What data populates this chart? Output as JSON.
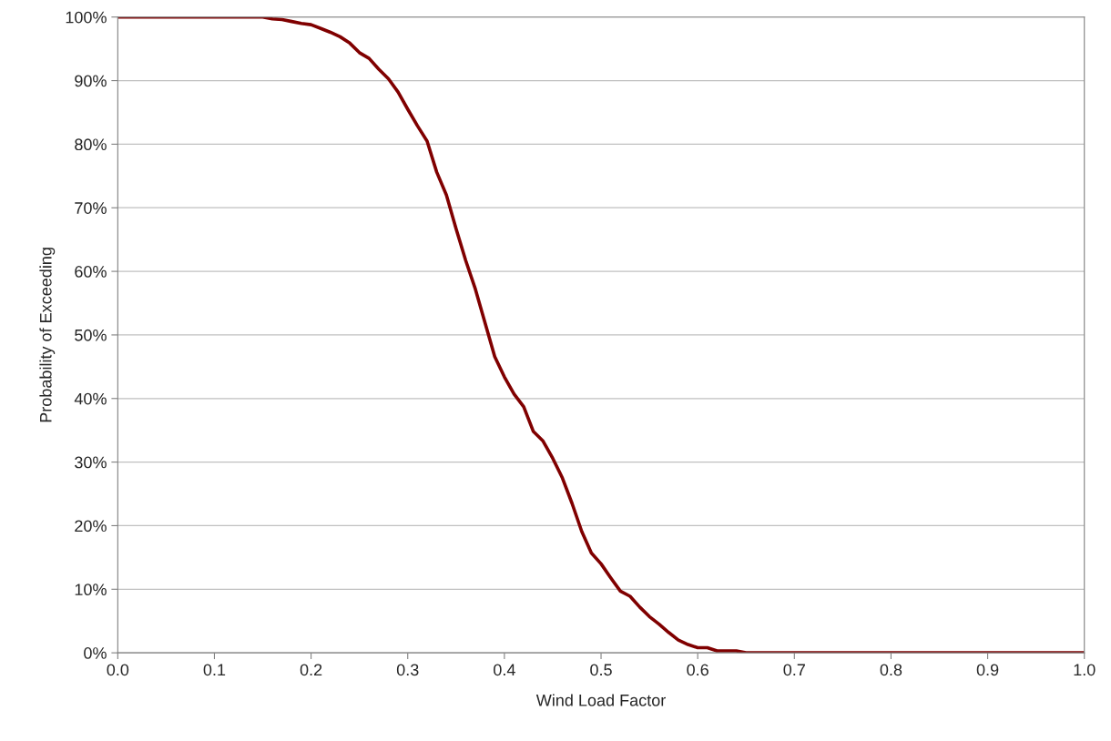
{
  "chart_data": {
    "type": "line",
    "xlabel": "Wind Load Factor",
    "ylabel": "Probability of Exceeding",
    "x": [
      0.0,
      0.05,
      0.1,
      0.15,
      0.16,
      0.17,
      0.18,
      0.19,
      0.2,
      0.21,
      0.22,
      0.23,
      0.24,
      0.25,
      0.26,
      0.27,
      0.28,
      0.29,
      0.3,
      0.31,
      0.32,
      0.33,
      0.34,
      0.35,
      0.36,
      0.37,
      0.38,
      0.39,
      0.4,
      0.41,
      0.42,
      0.43,
      0.44,
      0.45,
      0.46,
      0.47,
      0.48,
      0.49,
      0.5,
      0.51,
      0.52,
      0.53,
      0.54,
      0.55,
      0.56,
      0.57,
      0.58,
      0.59,
      0.6,
      0.61,
      0.62,
      0.63,
      0.64,
      0.65,
      0.7,
      0.8,
      0.9,
      1.0
    ],
    "series": [
      {
        "color": "#800000",
        "values": [
          100,
          100,
          100,
          100,
          99.7,
          99.6,
          99.3,
          99.0,
          98.8,
          98.2,
          97.6,
          96.9,
          95.9,
          94.4,
          93.5,
          91.8,
          90.3,
          88.2,
          85.5,
          82.9,
          80.5,
          75.6,
          72.0,
          66.7,
          61.7,
          57.2,
          51.9,
          46.6,
          43.4,
          40.7,
          38.7,
          34.8,
          33.3,
          30.6,
          27.5,
          23.5,
          19.1,
          15.7,
          14.0,
          11.8,
          9.7,
          8.9,
          7.2,
          5.7,
          4.5,
          3.2,
          2.0,
          1.3,
          0.8,
          0.8,
          0.3,
          0.3,
          0.3,
          0,
          0,
          0,
          0,
          0
        ]
      }
    ],
    "xlim": [
      0,
      1
    ],
    "ylim": [
      0,
      100
    ],
    "xticks": [
      {
        "value": 0,
        "label": "0.0"
      },
      {
        "value": 0.1,
        "label": "0.1"
      },
      {
        "value": 0.2,
        "label": "0.2"
      },
      {
        "value": 0.3,
        "label": "0.3"
      },
      {
        "value": 0.4,
        "label": "0.4"
      },
      {
        "value": 0.5,
        "label": "0.5"
      },
      {
        "value": 0.6,
        "label": "0.6"
      },
      {
        "value": 0.7,
        "label": "0.7"
      },
      {
        "value": 0.8,
        "label": "0.8"
      },
      {
        "value": 0.9,
        "label": "0.9"
      },
      {
        "value": 1,
        "label": "1.0"
      }
    ],
    "yticks": [
      {
        "value": 0,
        "label": "0%"
      },
      {
        "value": 10,
        "label": "10%"
      },
      {
        "value": 20,
        "label": "20%"
      },
      {
        "value": 30,
        "label": "30%"
      },
      {
        "value": 40,
        "label": "40%"
      },
      {
        "value": 50,
        "label": "50%"
      },
      {
        "value": 60,
        "label": "60%"
      },
      {
        "value": 70,
        "label": "70%"
      },
      {
        "value": 80,
        "label": "80%"
      },
      {
        "value": 90,
        "label": "90%"
      },
      {
        "value": 100,
        "label": "100%"
      }
    ],
    "grid": "y",
    "marker": "none",
    "line_style": "solid"
  }
}
